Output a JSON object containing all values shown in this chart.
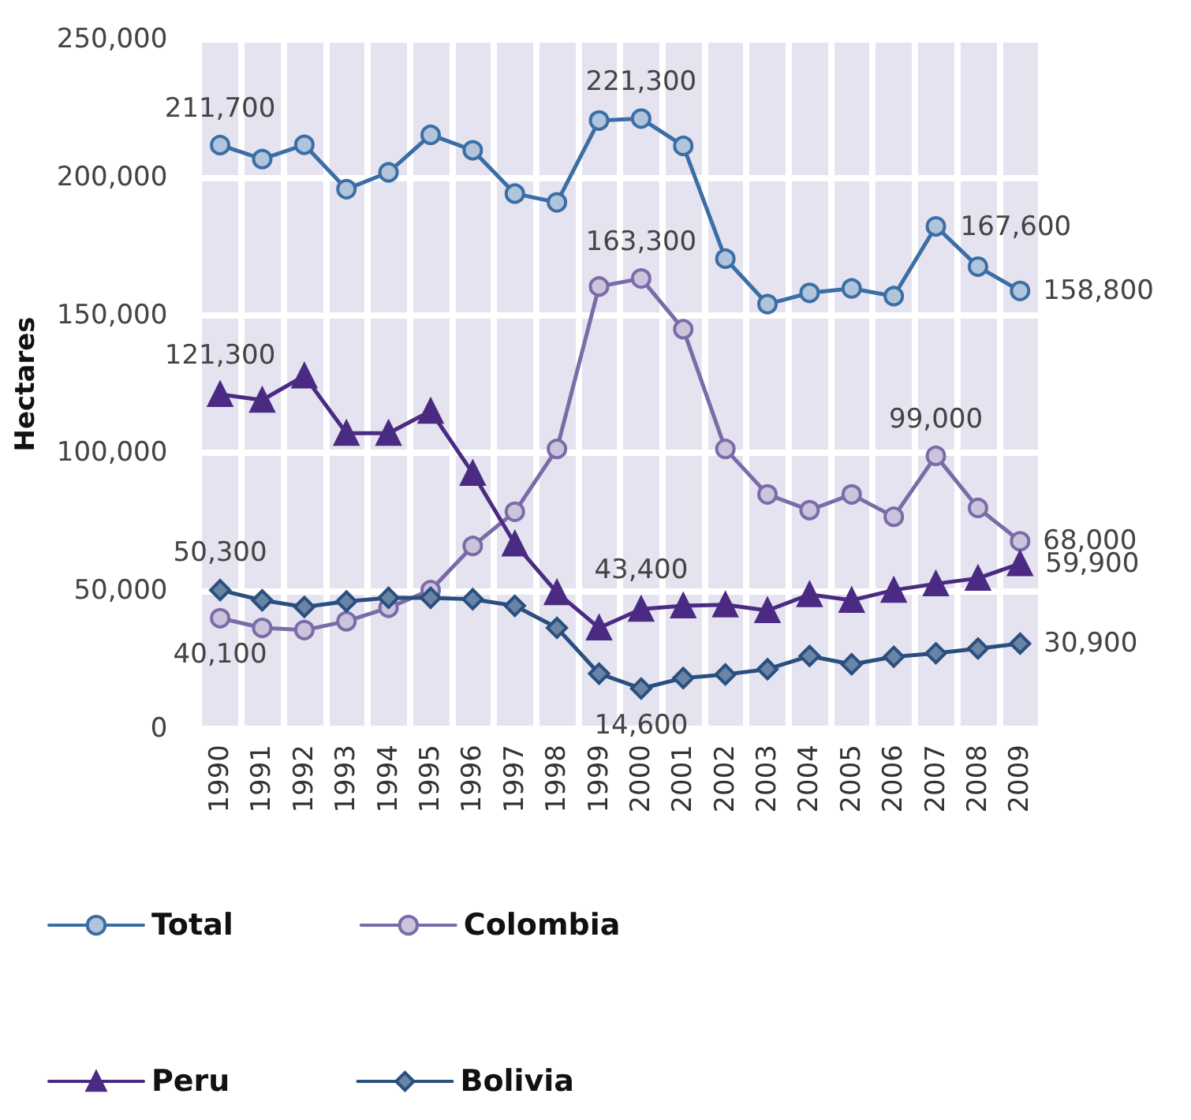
{
  "chart_data": {
    "type": "line",
    "ylabel": "Hectares",
    "categories": [
      "1990",
      "1991",
      "1992",
      "1993",
      "1994",
      "1995",
      "1996",
      "1997",
      "1998",
      "1999",
      "2000",
      "2001",
      "2002",
      "2003",
      "2004",
      "2005",
      "2006",
      "2007",
      "2008",
      "2009"
    ],
    "series": [
      {
        "name": "Total",
        "color": "#3a6ea5",
        "marker": "circle",
        "values": [
          211700,
          206600,
          211800,
          195700,
          201800,
          215400,
          209800,
          194100,
          190900,
          220600,
          221300,
          211400,
          170500,
          154000,
          158100,
          159700,
          156900,
          182200,
          167600,
          158800
        ],
        "value_labels": [
          "211,700",
          null,
          null,
          null,
          null,
          null,
          null,
          null,
          null,
          null,
          "221,300",
          null,
          null,
          null,
          null,
          null,
          null,
          null,
          "167,600",
          "158,800"
        ]
      },
      {
        "name": "Colombia",
        "color": "#7b6ba8",
        "marker": "circle",
        "values": [
          40100,
          36600,
          35800,
          39000,
          43900,
          50300,
          66300,
          78700,
          101500,
          160400,
          163300,
          144900,
          101500,
          85000,
          79300,
          85000,
          76900,
          99000,
          80100,
          68000
        ],
        "value_labels": [
          "40,100",
          null,
          null,
          null,
          null,
          null,
          null,
          null,
          null,
          null,
          "163,300",
          null,
          null,
          null,
          null,
          null,
          null,
          "99,000",
          null,
          "68,000"
        ]
      },
      {
        "name": "Peru",
        "color": "#4b2a83",
        "marker": "triangle",
        "values": [
          121300,
          119200,
          128000,
          107200,
          107200,
          115200,
          92700,
          67100,
          49400,
          36600,
          43400,
          44600,
          45000,
          42900,
          48700,
          46600,
          50300,
          52600,
          54600,
          59900
        ],
        "value_labels": [
          "121,300",
          null,
          null,
          null,
          null,
          null,
          null,
          null,
          null,
          null,
          "43,400",
          null,
          null,
          null,
          null,
          null,
          null,
          null,
          null,
          "59,900"
        ]
      },
      {
        "name": "Bolivia",
        "color": "#2a4f7f",
        "marker": "diamond",
        "values": [
          50300,
          46600,
          44200,
          46200,
          47500,
          47500,
          47000,
          44600,
          36600,
          20000,
          14600,
          18400,
          19700,
          21600,
          26400,
          23400,
          26100,
          27400,
          29100,
          30900
        ],
        "value_labels": [
          "50,300",
          null,
          null,
          null,
          null,
          null,
          null,
          null,
          null,
          null,
          "14,600",
          null,
          null,
          null,
          null,
          null,
          null,
          null,
          null,
          "30,900"
        ]
      }
    ],
    "ylim": [
      0,
      250000
    ],
    "yticks": [
      0,
      {
        "value": 50000,
        "label": "50,000"
      },
      {
        "value": 100000,
        "label": "100,000"
      },
      {
        "value": 150000,
        "label": "150,000"
      },
      {
        "value": 200000,
        "label": "200,000"
      },
      {
        "value": 250000,
        "label": "250,000"
      }
    ],
    "grid": true,
    "legend": "bottom"
  }
}
